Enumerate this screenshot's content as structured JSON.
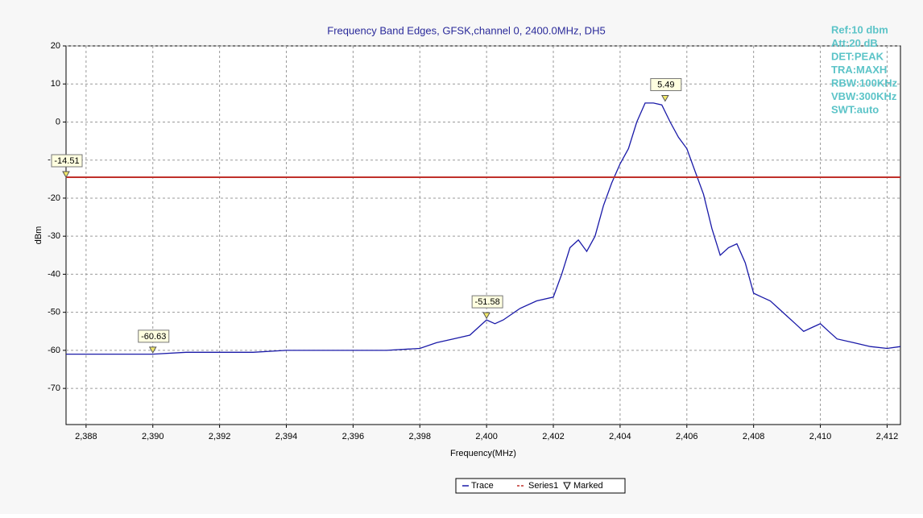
{
  "chart_data": {
    "type": "line",
    "title": "Frequency Band Edges, GFSK,channel 0, 2400.0MHz, DH5",
    "x_label": "Frequency(MHz)",
    "y_label": "dBm",
    "xlim": [
      2387.4,
      2412.4
    ],
    "ylim": [
      -79.5,
      20
    ],
    "xticks": [
      {
        "value": 2388,
        "label": "2,388"
      },
      {
        "value": 2390,
        "label": "2,390"
      },
      {
        "value": 2392,
        "label": "2,392"
      },
      {
        "value": 2394,
        "label": "2,394"
      },
      {
        "value": 2396,
        "label": "2,396"
      },
      {
        "value": 2398,
        "label": "2,398"
      },
      {
        "value": 2400,
        "label": "2,400"
      },
      {
        "value": 2402,
        "label": "2,402"
      },
      {
        "value": 2404,
        "label": "2,404"
      },
      {
        "value": 2406,
        "label": "2,406"
      },
      {
        "value": 2408,
        "label": "2,408"
      },
      {
        "value": 2410,
        "label": "2,410"
      },
      {
        "value": 2412,
        "label": "2,412"
      }
    ],
    "yticks": [
      20,
      10,
      0,
      -10,
      -20,
      -30,
      -40,
      -50,
      -60,
      -70
    ],
    "grid": true,
    "series": [
      {
        "name": "Trace",
        "color": "#1a1aa8",
        "x": [
          2387.4,
          2388,
          2389,
          2390,
          2391,
          2392,
          2393,
          2394,
          2395,
          2396,
          2397,
          2398,
          2398.5,
          2399,
          2399.5,
          2399.75,
          2400,
          2400.25,
          2400.5,
          2401,
          2401.5,
          2402,
          2402.25,
          2402.5,
          2402.75,
          2403,
          2403.25,
          2403.5,
          2403.75,
          2404,
          2404.25,
          2404.5,
          2404.75,
          2405,
          2405.25,
          2405.5,
          2405.75,
          2406,
          2406.25,
          2406.5,
          2406.75,
          2407,
          2407.25,
          2407.5,
          2407.75,
          2408,
          2408.25,
          2408.5,
          2408.75,
          2409,
          2409.25,
          2409.5,
          2409.75,
          2410,
          2410.25,
          2410.5,
          2411,
          2411.5,
          2412,
          2412.4
        ],
        "values": [
          -61,
          -61,
          -61,
          -61,
          -60.5,
          -60.5,
          -60.5,
          -60,
          -60,
          -60,
          -60,
          -59.5,
          -58,
          -57,
          -56,
          -54,
          -52,
          -53,
          -52,
          -49,
          -47,
          -46,
          -40,
          -33,
          -31,
          -34,
          -30,
          -22,
          -16,
          -11,
          -7,
          0,
          5,
          5,
          4.5,
          0,
          -4,
          -7,
          -13,
          -19,
          -28,
          -35,
          -33,
          -32,
          -37,
          -45,
          -46,
          -47,
          -49,
          -51,
          -53,
          -55,
          -54,
          -53,
          -55,
          -57,
          -58,
          -59,
          -59.5,
          -59
        ]
      },
      {
        "name": "Series1",
        "color": "#c0302a",
        "x": [
          2387.4,
          2412.4
        ],
        "values": [
          -14.51,
          -14.51
        ]
      }
    ],
    "markers": {
      "name": "Marked",
      "color": "#f2e86a",
      "x": [
        2387.4,
        2390,
        2400,
        2405.35
      ],
      "values": [
        -14.51,
        -60.63,
        -51.58,
        5.49
      ]
    },
    "annotations": [
      "Ref:10 dbm",
      "Att:20 dB",
      "DET:PEAK",
      "TRA:MAXH",
      "RBW:100KHz",
      "VBW:300KHz",
      "SWT:auto"
    ]
  }
}
